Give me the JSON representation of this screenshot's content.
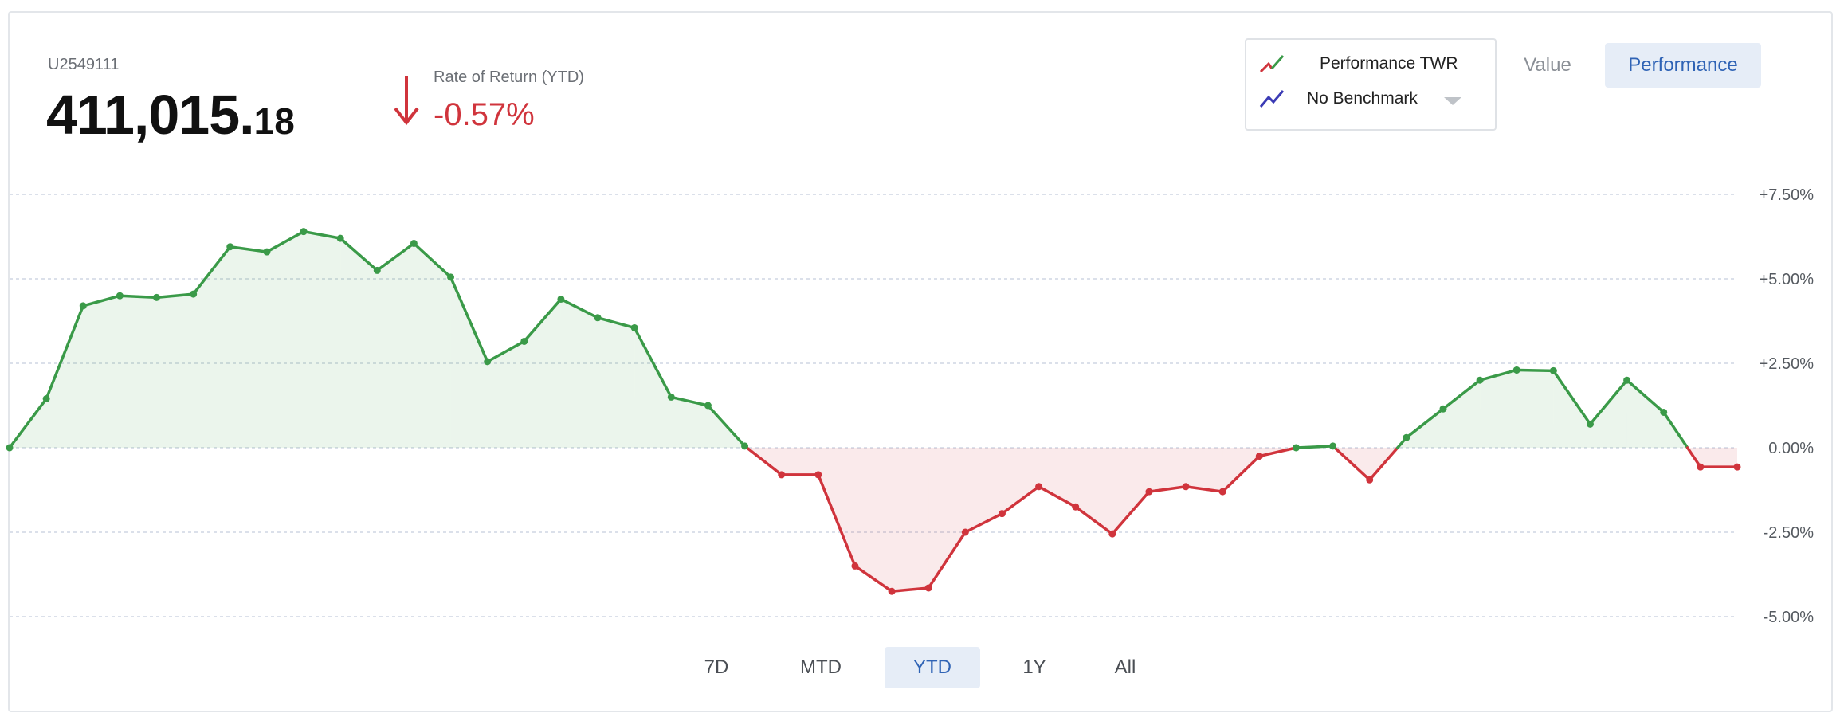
{
  "account": {
    "id": "U2549111",
    "balance_int": "411,015.",
    "balance_dec": "18"
  },
  "ror": {
    "label": "Rate of Return (YTD)",
    "value": "-0.57%",
    "color": "#d0343c"
  },
  "legend": {
    "series_label": "Performance TWR",
    "benchmark_label": "No Benchmark",
    "series_icon": "green-red-trend-icon",
    "benchmark_icon": "blue-trend-icon"
  },
  "toggles": {
    "value_label": "Value",
    "performance_label": "Performance",
    "active": "Performance"
  },
  "ranges": {
    "labels": [
      "7D",
      "MTD",
      "YTD",
      "1Y",
      "All"
    ],
    "active": "YTD"
  },
  "colors": {
    "positive": "#3a9a48",
    "negative": "#d0343c",
    "accent": "#2f63b5",
    "benchmark": "#3b3bb5"
  },
  "chart_data": {
    "type": "area",
    "ylim": [
      -5.0,
      7.5
    ],
    "yticks": [
      "-5.00%",
      "-2.50%",
      "0.00%",
      "+2.50%",
      "+5.00%",
      "+7.50%"
    ],
    "ytick_values": [
      -5.0,
      -2.5,
      0.0,
      2.5,
      5.0,
      7.5
    ],
    "grid": true,
    "series": [
      {
        "name": "Performance TWR",
        "values": [
          0.0,
          1.45,
          4.2,
          4.5,
          4.45,
          4.55,
          5.95,
          5.8,
          6.4,
          6.2,
          5.25,
          6.05,
          5.05,
          2.55,
          3.15,
          4.4,
          3.85,
          3.55,
          1.5,
          1.25,
          0.05,
          -0.8,
          -0.8,
          -3.5,
          -4.25,
          -4.15,
          -2.5,
          -1.95,
          -1.15,
          -1.75,
          -2.55,
          -1.3,
          -1.15,
          -1.3,
          -0.25,
          0.0,
          0.05,
          -0.95,
          0.3,
          1.15,
          2.0,
          2.3,
          2.28,
          0.7,
          2.0,
          1.05,
          -0.57,
          -0.57
        ]
      }
    ]
  }
}
